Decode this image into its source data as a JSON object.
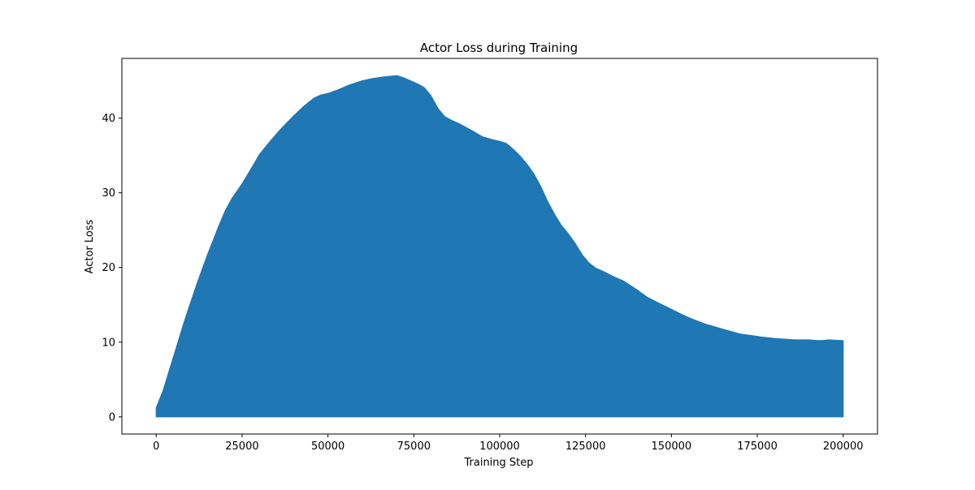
{
  "chart_data": {
    "type": "area",
    "title": "Actor Loss during Training",
    "xlabel": "Training Step",
    "ylabel": "Actor Loss",
    "xlim": [
      -10000,
      210000
    ],
    "ylim": [
      -2.3,
      48.0
    ],
    "x_ticks": [
      0,
      25000,
      50000,
      75000,
      100000,
      125000,
      150000,
      175000,
      200000
    ],
    "x_tick_labels": [
      "0",
      "25000",
      "50000",
      "75000",
      "100000",
      "125000",
      "150000",
      "175000",
      "200000"
    ],
    "y_ticks": [
      0,
      10,
      20,
      30,
      40
    ],
    "y_tick_labels": [
      "0",
      "10",
      "20",
      "30",
      "40"
    ],
    "grid": false,
    "legend": "none",
    "fill_baseline": 0,
    "series": [
      {
        "color": "#1f77b4",
        "x": [
          0,
          2000,
          4000,
          6000,
          8000,
          10000,
          12000,
          15000,
          18000,
          20000,
          22000,
          25000,
          28000,
          30000,
          33000,
          36000,
          40000,
          43000,
          46000,
          48000,
          50000,
          53000,
          56000,
          60000,
          63000,
          66000,
          68000,
          70000,
          72000,
          74000,
          76000,
          78000,
          80000,
          82000,
          84000,
          86000,
          88000,
          90000,
          92000,
          95000,
          98000,
          100000,
          102000,
          104000,
          106000,
          108000,
          110000,
          112000,
          114000,
          116000,
          118000,
          120000,
          122000,
          124000,
          126000,
          128000,
          130000,
          133000,
          136000,
          140000,
          143000,
          146000,
          150000,
          153000,
          156000,
          160000,
          163000,
          166000,
          170000,
          173000,
          176000,
          180000,
          183000,
          186000,
          190000,
          193000,
          196000,
          200000
        ],
        "upper": [
          1.2,
          3.5,
          6.5,
          9.5,
          12.5,
          15.3,
          18.0,
          21.8,
          25.3,
          27.5,
          29.2,
          31.2,
          33.5,
          35.1,
          36.8,
          38.4,
          40.3,
          41.6,
          42.7,
          43.1,
          43.3,
          43.8,
          44.4,
          45.0,
          45.3,
          45.5,
          45.6,
          45.7,
          45.4,
          45.0,
          44.6,
          44.1,
          43.0,
          41.3,
          40.2,
          39.7,
          39.3,
          38.8,
          38.3,
          37.5,
          37.1,
          36.9,
          36.6,
          35.8,
          34.9,
          33.8,
          32.5,
          30.8,
          28.8,
          27.1,
          25.6,
          24.5,
          23.2,
          21.7,
          20.6,
          19.9,
          19.5,
          18.8,
          18.2,
          17.0,
          16.0,
          15.3,
          14.4,
          13.7,
          13.1,
          12.4,
          12.0,
          11.6,
          11.1,
          10.9,
          10.7,
          10.5,
          10.4,
          10.3,
          10.3,
          10.2,
          10.3,
          10.2
        ]
      }
    ]
  }
}
